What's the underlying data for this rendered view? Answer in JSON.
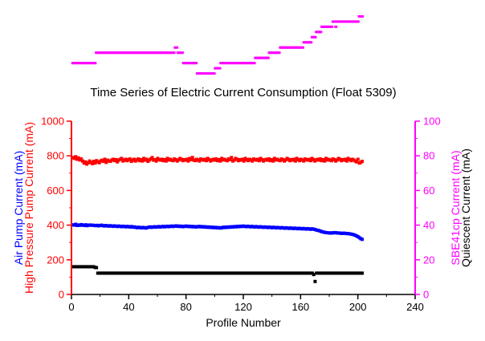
{
  "chart_data": {
    "type": "scatter",
    "title": "Time Series of Electric Current Consumption (Float 5309)",
    "xlabel": "Profile Number",
    "xlim": [
      0,
      240
    ],
    "xticks": [
      "0",
      "40",
      "80",
      "120",
      "160",
      "200",
      "240"
    ],
    "left_axis": {
      "labels": [
        "High Pressure Pump Current (mA)",
        "Air Pump Current (mA)"
      ],
      "label_colors": [
        "#ff0000",
        "#0000ff"
      ],
      "axis_color": "#ff0000",
      "ylim": [
        0,
        1000
      ],
      "ticks": [
        "0",
        "200",
        "400",
        "600",
        "800",
        "1000"
      ]
    },
    "right_axis": {
      "labels": [
        "SBE41cp Current (mA)",
        "Quiescent Current (mA)"
      ],
      "label_colors": [
        "#ff00ff",
        "#000000"
      ],
      "axis_color": "#ff00ff",
      "ylim": [
        0,
        100
      ],
      "ticks": [
        "0",
        "20",
        "40",
        "60",
        "80",
        "100"
      ]
    },
    "series": [
      {
        "axis": "left",
        "color": "#ff0000",
        "x_start": 1,
        "x_end": 203,
        "values": [
          790,
          785,
          795,
          780,
          788,
          776,
          782,
          770,
          758,
          765,
          752,
          760,
          770,
          762,
          755,
          768,
          758,
          772,
          765,
          760,
          770,
          775,
          768,
          780,
          762,
          775,
          770,
          768,
          776,
          780,
          772,
          778,
          765,
          775,
          780,
          785,
          770,
          775,
          780,
          772,
          778,
          782,
          768,
          775,
          780,
          770,
          776,
          782,
          772,
          778,
          770,
          785,
          775,
          780,
          768,
          776,
          782,
          790,
          775,
          778,
          770,
          785,
          778,
          775,
          780,
          772,
          778,
          770,
          785,
          776,
          780,
          775,
          772,
          782,
          778,
          770,
          776,
          785,
          780,
          772,
          778,
          775,
          780,
          770,
          785,
          778,
          790,
          775,
          772,
          780,
          776,
          770,
          782,
          778,
          775,
          780,
          772,
          785,
          778,
          770,
          776,
          780,
          775,
          782,
          772,
          778,
          770,
          785,
          776,
          780,
          775,
          772,
          782,
          778,
          790,
          770,
          776,
          785,
          780,
          772,
          778,
          775,
          780,
          770,
          785,
          778,
          772,
          780,
          776,
          770,
          782,
          778,
          775,
          780,
          772,
          785,
          778,
          770,
          776,
          780,
          775,
          782,
          772,
          778,
          770,
          785,
          776,
          780,
          775,
          772,
          782,
          778,
          770,
          776,
          785,
          780,
          772,
          778,
          775,
          780,
          770,
          785,
          778,
          772,
          780,
          776,
          770,
          782,
          778,
          775,
          780,
          772,
          785,
          778,
          770,
          776,
          780,
          775,
          782,
          772,
          778,
          770,
          785,
          776,
          780,
          775,
          772,
          782,
          778,
          770,
          776,
          785,
          780,
          772,
          778,
          775,
          780,
          770,
          785,
          778,
          772,
          780,
          776,
          770,
          765,
          780,
          758,
          762,
          768
        ]
      },
      {
        "axis": "left",
        "color": "#0000ff",
        "x_start": 1,
        "x_end": 203,
        "values": [
          402,
          400,
          405,
          398,
          401,
          399,
          403,
          400,
          398,
          402,
          397,
          400,
          401,
          399,
          400,
          398,
          397,
          399,
          396,
          398,
          400,
          397,
          395,
          398,
          396,
          394,
          397,
          395,
          393,
          396,
          394,
          392,
          395,
          393,
          391,
          394,
          392,
          390,
          393,
          391,
          389,
          392,
          388,
          390,
          387,
          385,
          388,
          386,
          384,
          387,
          385,
          383,
          386,
          388,
          390,
          387,
          389,
          391,
          388,
          390,
          392,
          389,
          391,
          393,
          390,
          392,
          394,
          391,
          393,
          395,
          392,
          394,
          396,
          393,
          395,
          392,
          394,
          391,
          393,
          395,
          392,
          394,
          391,
          393,
          390,
          392,
          389,
          391,
          393,
          390,
          392,
          389,
          391,
          388,
          390,
          387,
          389,
          386,
          388,
          385,
          387,
          384,
          386,
          383,
          385,
          388,
          386,
          389,
          387,
          390,
          388,
          391,
          389,
          392,
          390,
          393,
          391,
          394,
          392,
          395,
          393,
          391,
          394,
          392,
          390,
          393,
          391,
          389,
          392,
          390,
          388,
          391,
          389,
          387,
          390,
          388,
          386,
          389,
          387,
          385,
          388,
          386,
          384,
          387,
          385,
          383,
          386,
          384,
          382,
          385,
          383,
          381,
          384,
          382,
          380,
          383,
          381,
          379,
          382,
          380,
          378,
          381,
          379,
          377,
          380,
          378,
          376,
          379,
          377,
          375,
          372,
          370,
          368,
          365,
          362,
          360,
          358,
          357,
          356,
          355,
          354,
          356,
          355,
          357,
          356,
          354,
          355,
          353,
          352,
          354,
          353,
          351,
          352,
          350,
          349,
          347,
          345,
          342,
          338,
          334,
          328,
          322,
          318
        ]
      },
      {
        "axis": "right",
        "color": "#000000",
        "x_start": 1,
        "x_end": 203,
        "values": [
          16,
          16,
          16,
          16,
          16,
          16,
          16,
          16,
          16,
          16,
          16,
          16,
          16,
          16,
          16,
          16,
          15.6,
          15.5,
          12.3,
          12.3,
          12.3,
          12.3,
          12.3,
          12.3,
          12.3,
          12.3,
          12.3,
          12.3,
          12.3,
          12.3,
          12.3,
          12.3,
          12.3,
          12.3,
          12.3,
          12.3,
          12.3,
          12.3,
          12.3,
          12.3,
          12.3,
          12.3,
          12.3,
          12.3,
          12.3,
          12.3,
          12.3,
          12.3,
          12.3,
          12.3,
          12.3,
          12.3,
          12.3,
          12.3,
          12.3,
          12.3,
          12.3,
          12.3,
          12.3,
          12.3,
          12.3,
          12.3,
          12.3,
          12.3,
          12.3,
          12.3,
          12.3,
          12.3,
          12.3,
          12.3,
          12.3,
          12.3,
          12.3,
          12.3,
          12.3,
          12.3,
          12.3,
          12.3,
          12.3,
          12.3,
          12.3,
          12.3,
          12.3,
          12.3,
          12.3,
          12.3,
          12.3,
          12.3,
          12.3,
          12.3,
          12.3,
          12.3,
          12.3,
          12.3,
          12.3,
          12.3,
          12.3,
          12.3,
          12.3,
          12.3,
          12.3,
          12.3,
          12.3,
          12.3,
          12.3,
          12.3,
          12.3,
          12.3,
          12.3,
          12.3,
          12.3,
          12.3,
          12.3,
          12.3,
          12.3,
          12.3,
          12.3,
          12.3,
          12.3,
          12.3,
          12.3,
          12.3,
          12.3,
          12.3,
          12.3,
          12.3,
          12.3,
          12.3,
          12.3,
          12.3,
          12.3,
          12.3,
          12.3,
          12.3,
          12.3,
          12.3,
          12.3,
          12.3,
          12.3,
          12.3,
          12.3,
          12.3,
          12.3,
          12.3,
          12.3,
          12.3,
          12.3,
          12.3,
          12.3,
          12.3,
          12.3,
          12.3,
          12.3,
          12.3,
          12.3,
          12.3,
          12.3,
          12.3,
          12.3,
          12.3,
          12.3,
          12.3,
          12.3,
          12.3,
          12.3,
          12.3,
          12.3,
          12.3,
          12.3,
          12.3,
          12.3,
          12.3,
          12.3,
          12.3,
          11.5,
          7.5,
          12.3,
          12.3,
          12.3,
          12.3,
          12.3,
          12.3,
          12.3,
          12.3,
          12.3,
          12.3,
          12.3,
          12.3,
          12.3,
          12.3,
          12.3,
          12.3,
          12.3,
          12.3,
          12.3,
          12.3,
          12.3,
          12.3,
          12.3,
          12.3,
          12.3,
          12.3,
          12.3,
          12.3,
          12.3,
          12.3,
          12.3,
          12.3,
          12.3,
          12.3
        ]
      }
    ],
    "inset": {
      "type": "scatter",
      "color": "#ff00ff",
      "x_start": 1,
      "x_end": 203,
      "values": [
        88,
        88,
        88,
        88,
        88,
        88,
        88,
        88,
        88,
        88,
        88,
        88,
        88,
        88,
        88,
        88,
        88,
        90,
        90,
        90,
        90,
        90,
        90,
        90,
        90,
        90,
        90,
        90,
        90,
        90,
        90,
        90,
        90,
        90,
        90,
        90,
        90,
        90,
        90,
        90,
        90,
        90,
        90,
        90,
        90,
        90,
        90,
        90,
        90,
        90,
        90,
        90,
        90,
        90,
        90,
        90,
        90,
        90,
        90,
        90,
        90,
        90,
        90,
        90,
        90,
        90,
        90,
        90,
        90,
        90,
        90,
        90,
        90,
        90,
        91,
        91,
        90,
        90,
        90,
        90,
        88,
        88,
        88,
        88,
        88,
        88,
        88,
        88,
        88,
        88,
        86,
        86,
        86,
        86,
        86,
        86,
        86,
        86,
        86,
        86,
        86,
        86,
        86,
        87,
        87,
        87,
        87,
        88,
        88,
        88,
        88,
        88,
        88,
        88,
        88,
        88,
        88,
        88,
        88,
        88,
        88,
        88,
        88,
        88,
        88,
        88,
        88,
        88,
        88,
        88,
        88,
        88,
        89,
        89,
        89,
        89,
        89,
        89,
        89,
        89,
        89,
        89,
        90,
        90,
        90,
        90,
        90,
        90,
        90,
        90,
        91,
        91,
        91,
        91,
        91,
        91,
        91,
        91,
        91,
        91,
        91,
        91,
        91,
        91,
        91,
        91,
        91,
        92,
        92,
        92,
        92,
        92,
        92,
        93,
        93,
        93,
        94,
        94,
        94,
        94,
        95,
        95,
        95,
        95,
        95,
        95,
        95,
        95,
        96,
        96,
        95,
        96,
        96,
        96,
        96,
        96,
        96,
        96,
        96,
        96,
        96,
        96,
        96,
        96,
        96,
        96,
        96,
        97,
        97,
        97
      ]
    }
  }
}
